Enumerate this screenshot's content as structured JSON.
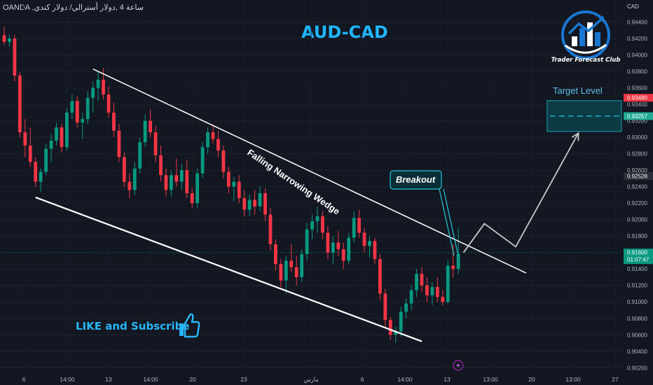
{
  "header": {
    "symbol_info": "OANDA ,ساعة 4 ,دولار أسترالي/ دولار كندي",
    "title": "AUD-CAD",
    "currency": "CAD"
  },
  "logo": {
    "text": "Trader Forecast Club",
    "colors": {
      "blue": "#1976d2",
      "white": "#ffffff"
    }
  },
  "annotations": {
    "wedge_label": "Falling Narrowing Wedge",
    "breakout_label": "Breakout",
    "target_label": "Target Level",
    "like_text": "LIKE and Subscribe",
    "like_icon": "thumbs-up-icon",
    "lightning_icon": "lightning-icon"
  },
  "price_badges": {
    "upper": {
      "value": "0.93480",
      "color": "#f23645"
    },
    "target_mid": {
      "value": "0.93257",
      "color": "#22ab94"
    },
    "wedge_level": {
      "value": "0.92528",
      "color": "#2a2e39"
    },
    "current": {
      "value": "0.91600",
      "color": "#089981"
    },
    "countdown": "01:07:47"
  },
  "chart_data": {
    "type": "candlestick",
    "y_ticks": [
      "0.94400",
      "0.94200",
      "0.94000",
      "0.93800",
      "0.93600",
      "0.93400",
      "0.93200",
      "0.93000",
      "0.92800",
      "0.92600",
      "0.92400",
      "0.92200",
      "0.92000",
      "0.91800",
      "0.91400",
      "0.91200",
      "0.91000",
      "0.90800",
      "0.90600",
      "0.90400",
      "0.90200"
    ],
    "x_ticks": [
      "6",
      "14:00",
      "13",
      "14:00",
      "20",
      "23",
      "مارس",
      "6",
      "14:00",
      "13",
      "13:00",
      "20",
      "13:00",
      "27"
    ],
    "ylim": [
      0.9016,
      0.946
    ],
    "colors": {
      "up": "#089981",
      "down": "#f23645",
      "line": "#ffffff",
      "target_box": "#0d3b45",
      "target_dash": "#26c6da"
    },
    "candles": [
      {
        "o": 0.9424,
        "h": 0.9434,
        "l": 0.9412,
        "c": 0.9416
      },
      {
        "o": 0.9416,
        "h": 0.9425,
        "l": 0.941,
        "c": 0.942
      },
      {
        "o": 0.942,
        "h": 0.9424,
        "l": 0.9368,
        "c": 0.9375
      },
      {
        "o": 0.9375,
        "h": 0.9379,
        "l": 0.93,
        "c": 0.9306
      },
      {
        "o": 0.9306,
        "h": 0.9322,
        "l": 0.9276,
        "c": 0.929
      },
      {
        "o": 0.929,
        "h": 0.9312,
        "l": 0.9264,
        "c": 0.927
      },
      {
        "o": 0.927,
        "h": 0.9276,
        "l": 0.924,
        "c": 0.9246
      },
      {
        "o": 0.9246,
        "h": 0.9262,
        "l": 0.9234,
        "c": 0.9258
      },
      {
        "o": 0.9258,
        "h": 0.9292,
        "l": 0.9254,
        "c": 0.9286
      },
      {
        "o": 0.9286,
        "h": 0.9304,
        "l": 0.927,
        "c": 0.9296
      },
      {
        "o": 0.9296,
        "h": 0.9318,
        "l": 0.929,
        "c": 0.9312
      },
      {
        "o": 0.9312,
        "h": 0.9316,
        "l": 0.9282,
        "c": 0.9288
      },
      {
        "o": 0.9288,
        "h": 0.9336,
        "l": 0.9284,
        "c": 0.933
      },
      {
        "o": 0.933,
        "h": 0.9352,
        "l": 0.9322,
        "c": 0.9344
      },
      {
        "o": 0.9344,
        "h": 0.935,
        "l": 0.9312,
        "c": 0.9318
      },
      {
        "o": 0.9318,
        "h": 0.933,
        "l": 0.9298,
        "c": 0.9322
      },
      {
        "o": 0.9322,
        "h": 0.9356,
        "l": 0.9316,
        "c": 0.9348
      },
      {
        "o": 0.9348,
        "h": 0.9368,
        "l": 0.933,
        "c": 0.936
      },
      {
        "o": 0.936,
        "h": 0.938,
        "l": 0.9344,
        "c": 0.937
      },
      {
        "o": 0.937,
        "h": 0.9384,
        "l": 0.9346,
        "c": 0.9352
      },
      {
        "o": 0.9352,
        "h": 0.9362,
        "l": 0.9324,
        "c": 0.933
      },
      {
        "o": 0.933,
        "h": 0.9342,
        "l": 0.93,
        "c": 0.9308
      },
      {
        "o": 0.9308,
        "h": 0.9316,
        "l": 0.927,
        "c": 0.9276
      },
      {
        "o": 0.9276,
        "h": 0.9282,
        "l": 0.924,
        "c": 0.9246
      },
      {
        "o": 0.9246,
        "h": 0.9256,
        "l": 0.9226,
        "c": 0.9236
      },
      {
        "o": 0.9236,
        "h": 0.927,
        "l": 0.923,
        "c": 0.9262
      },
      {
        "o": 0.9262,
        "h": 0.93,
        "l": 0.9256,
        "c": 0.9294
      },
      {
        "o": 0.9294,
        "h": 0.9328,
        "l": 0.9288,
        "c": 0.932
      },
      {
        "o": 0.932,
        "h": 0.9334,
        "l": 0.93,
        "c": 0.9306
      },
      {
        "o": 0.9306,
        "h": 0.9314,
        "l": 0.927,
        "c": 0.9278
      },
      {
        "o": 0.9278,
        "h": 0.929,
        "l": 0.9246,
        "c": 0.9254
      },
      {
        "o": 0.9254,
        "h": 0.9262,
        "l": 0.9228,
        "c": 0.9236
      },
      {
        "o": 0.9236,
        "h": 0.926,
        "l": 0.9228,
        "c": 0.9254
      },
      {
        "o": 0.9254,
        "h": 0.9274,
        "l": 0.924,
        "c": 0.9246
      },
      {
        "o": 0.9246,
        "h": 0.9268,
        "l": 0.9236,
        "c": 0.926
      },
      {
        "o": 0.926,
        "h": 0.9272,
        "l": 0.9226,
        "c": 0.9232
      },
      {
        "o": 0.9232,
        "h": 0.9238,
        "l": 0.9214,
        "c": 0.922
      },
      {
        "o": 0.922,
        "h": 0.9262,
        "l": 0.9214,
        "c": 0.9256
      },
      {
        "o": 0.9256,
        "h": 0.9294,
        "l": 0.925,
        "c": 0.9288
      },
      {
        "o": 0.9288,
        "h": 0.9312,
        "l": 0.928,
        "c": 0.9306
      },
      {
        "o": 0.9306,
        "h": 0.9316,
        "l": 0.9292,
        "c": 0.9298
      },
      {
        "o": 0.9298,
        "h": 0.9308,
        "l": 0.9276,
        "c": 0.9284
      },
      {
        "o": 0.9284,
        "h": 0.929,
        "l": 0.925,
        "c": 0.9258
      },
      {
        "o": 0.9258,
        "h": 0.9264,
        "l": 0.9232,
        "c": 0.924
      },
      {
        "o": 0.924,
        "h": 0.9252,
        "l": 0.9222,
        "c": 0.9246
      },
      {
        "o": 0.9246,
        "h": 0.9254,
        "l": 0.922,
        "c": 0.9226
      },
      {
        "o": 0.9226,
        "h": 0.9236,
        "l": 0.9204,
        "c": 0.9212
      },
      {
        "o": 0.9212,
        "h": 0.923,
        "l": 0.9204,
        "c": 0.9224
      },
      {
        "o": 0.9224,
        "h": 0.9236,
        "l": 0.9206,
        "c": 0.9216
      },
      {
        "o": 0.9216,
        "h": 0.924,
        "l": 0.921,
        "c": 0.9232
      },
      {
        "o": 0.9232,
        "h": 0.9238,
        "l": 0.9198,
        "c": 0.9206
      },
      {
        "o": 0.9206,
        "h": 0.9214,
        "l": 0.9162,
        "c": 0.917
      },
      {
        "o": 0.917,
        "h": 0.9176,
        "l": 0.9138,
        "c": 0.9146
      },
      {
        "o": 0.9146,
        "h": 0.9152,
        "l": 0.9118,
        "c": 0.9126
      },
      {
        "o": 0.9126,
        "h": 0.9156,
        "l": 0.911,
        "c": 0.915
      },
      {
        "o": 0.915,
        "h": 0.917,
        "l": 0.9136,
        "c": 0.9142
      },
      {
        "o": 0.9142,
        "h": 0.9156,
        "l": 0.912,
        "c": 0.913
      },
      {
        "o": 0.913,
        "h": 0.9164,
        "l": 0.9124,
        "c": 0.9158
      },
      {
        "o": 0.9158,
        "h": 0.9196,
        "l": 0.915,
        "c": 0.9188
      },
      {
        "o": 0.9188,
        "h": 0.9206,
        "l": 0.9176,
        "c": 0.9198
      },
      {
        "o": 0.9198,
        "h": 0.9216,
        "l": 0.9184,
        "c": 0.9204
      },
      {
        "o": 0.9204,
        "h": 0.921,
        "l": 0.9176,
        "c": 0.9184
      },
      {
        "o": 0.9184,
        "h": 0.9192,
        "l": 0.9152,
        "c": 0.916
      },
      {
        "o": 0.916,
        "h": 0.918,
        "l": 0.9146,
        "c": 0.9172
      },
      {
        "o": 0.9172,
        "h": 0.9186,
        "l": 0.9156,
        "c": 0.9164
      },
      {
        "o": 0.9164,
        "h": 0.9172,
        "l": 0.914,
        "c": 0.915
      },
      {
        "o": 0.915,
        "h": 0.9184,
        "l": 0.9146,
        "c": 0.9178
      },
      {
        "o": 0.9178,
        "h": 0.921,
        "l": 0.9172,
        "c": 0.9202
      },
      {
        "o": 0.9202,
        "h": 0.9212,
        "l": 0.9178,
        "c": 0.9184
      },
      {
        "o": 0.9184,
        "h": 0.919,
        "l": 0.916,
        "c": 0.9168
      },
      {
        "o": 0.9168,
        "h": 0.918,
        "l": 0.9154,
        "c": 0.9174
      },
      {
        "o": 0.9174,
        "h": 0.9178,
        "l": 0.9146,
        "c": 0.9152
      },
      {
        "o": 0.9152,
        "h": 0.9158,
        "l": 0.9102,
        "c": 0.911
      },
      {
        "o": 0.911,
        "h": 0.9116,
        "l": 0.907,
        "c": 0.9078
      },
      {
        "o": 0.9078,
        "h": 0.9082,
        "l": 0.9054,
        "c": 0.906
      },
      {
        "o": 0.906,
        "h": 0.907,
        "l": 0.905,
        "c": 0.9064
      },
      {
        "o": 0.9064,
        "h": 0.9094,
        "l": 0.9058,
        "c": 0.9088
      },
      {
        "o": 0.9088,
        "h": 0.9104,
        "l": 0.908,
        "c": 0.9098
      },
      {
        "o": 0.9098,
        "h": 0.912,
        "l": 0.909,
        "c": 0.9114
      },
      {
        "o": 0.9114,
        "h": 0.914,
        "l": 0.9106,
        "c": 0.9134
      },
      {
        "o": 0.9134,
        "h": 0.9142,
        "l": 0.9112,
        "c": 0.912
      },
      {
        "o": 0.912,
        "h": 0.913,
        "l": 0.91,
        "c": 0.9108
      },
      {
        "o": 0.9108,
        "h": 0.9124,
        "l": 0.9096,
        "c": 0.9118
      },
      {
        "o": 0.9118,
        "h": 0.913,
        "l": 0.91,
        "c": 0.9106
      },
      {
        "o": 0.9106,
        "h": 0.9114,
        "l": 0.9096,
        "c": 0.91
      },
      {
        "o": 0.91,
        "h": 0.915,
        "l": 0.9098,
        "c": 0.9144
      },
      {
        "o": 0.9144,
        "h": 0.917,
        "l": 0.913,
        "c": 0.914
      },
      {
        "o": 0.914,
        "h": 0.919,
        "l": 0.9134,
        "c": 0.9158
      }
    ],
    "falling_wedge_upper": {
      "from": {
        "i": 17,
        "p": 0.9383
      },
      "to": {
        "i": 100,
        "p": 0.9135
      }
    },
    "falling_wedge_lower": {
      "from": {
        "i": 6,
        "p": 0.9227
      },
      "to": {
        "i": 80,
        "p": 0.9052
      }
    },
    "projection_path": [
      {
        "i": 88,
        "p": 0.916
      },
      {
        "i": 92,
        "p": 0.9195
      },
      {
        "i": 98,
        "p": 0.9167
      },
      {
        "i": 110,
        "p": 0.9305
      }
    ],
    "target_zone": {
      "top": 0.93445,
      "bottom": 0.9307,
      "mid": 0.93257,
      "from_i": 104
    }
  }
}
